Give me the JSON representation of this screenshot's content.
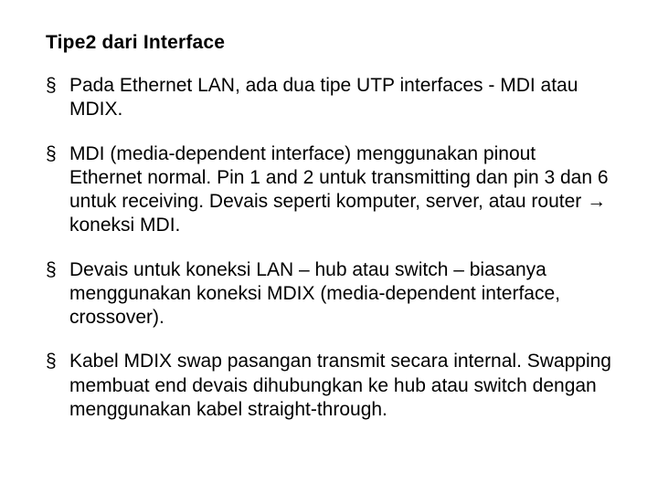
{
  "slide": {
    "title": "Tipe2 dari  Interface",
    "title_fontsize": 21,
    "title_fontweight": "bold",
    "bullet_marker": "§",
    "body_fontsize": 21,
    "text_color": "#000000",
    "background_color": "#ffffff",
    "bullets": [
      "Pada Ethernet LAN, ada dua tipe UTP interfaces - MDI atau  MDIX.",
      "MDI (media-dependent interface) menggunakan pinout  Ethernet normal. Pin 1 and 2 untuk transmitting dan pin 3 dan 6 untuk receiving. Devais seperti komputer, server, atau router → koneksi MDI.",
      "Devais untuk koneksi  LAN – hub atau  switch – biasanya menggunakan koneksi MDIX (media-dependent  interface, crossover).",
      "Kabel MDIX swap pasangan transmit secara internal. Swapping membuat end devais dihubungkan  ke hub atau switch dengan menggunakan kabel  straight-through."
    ]
  }
}
